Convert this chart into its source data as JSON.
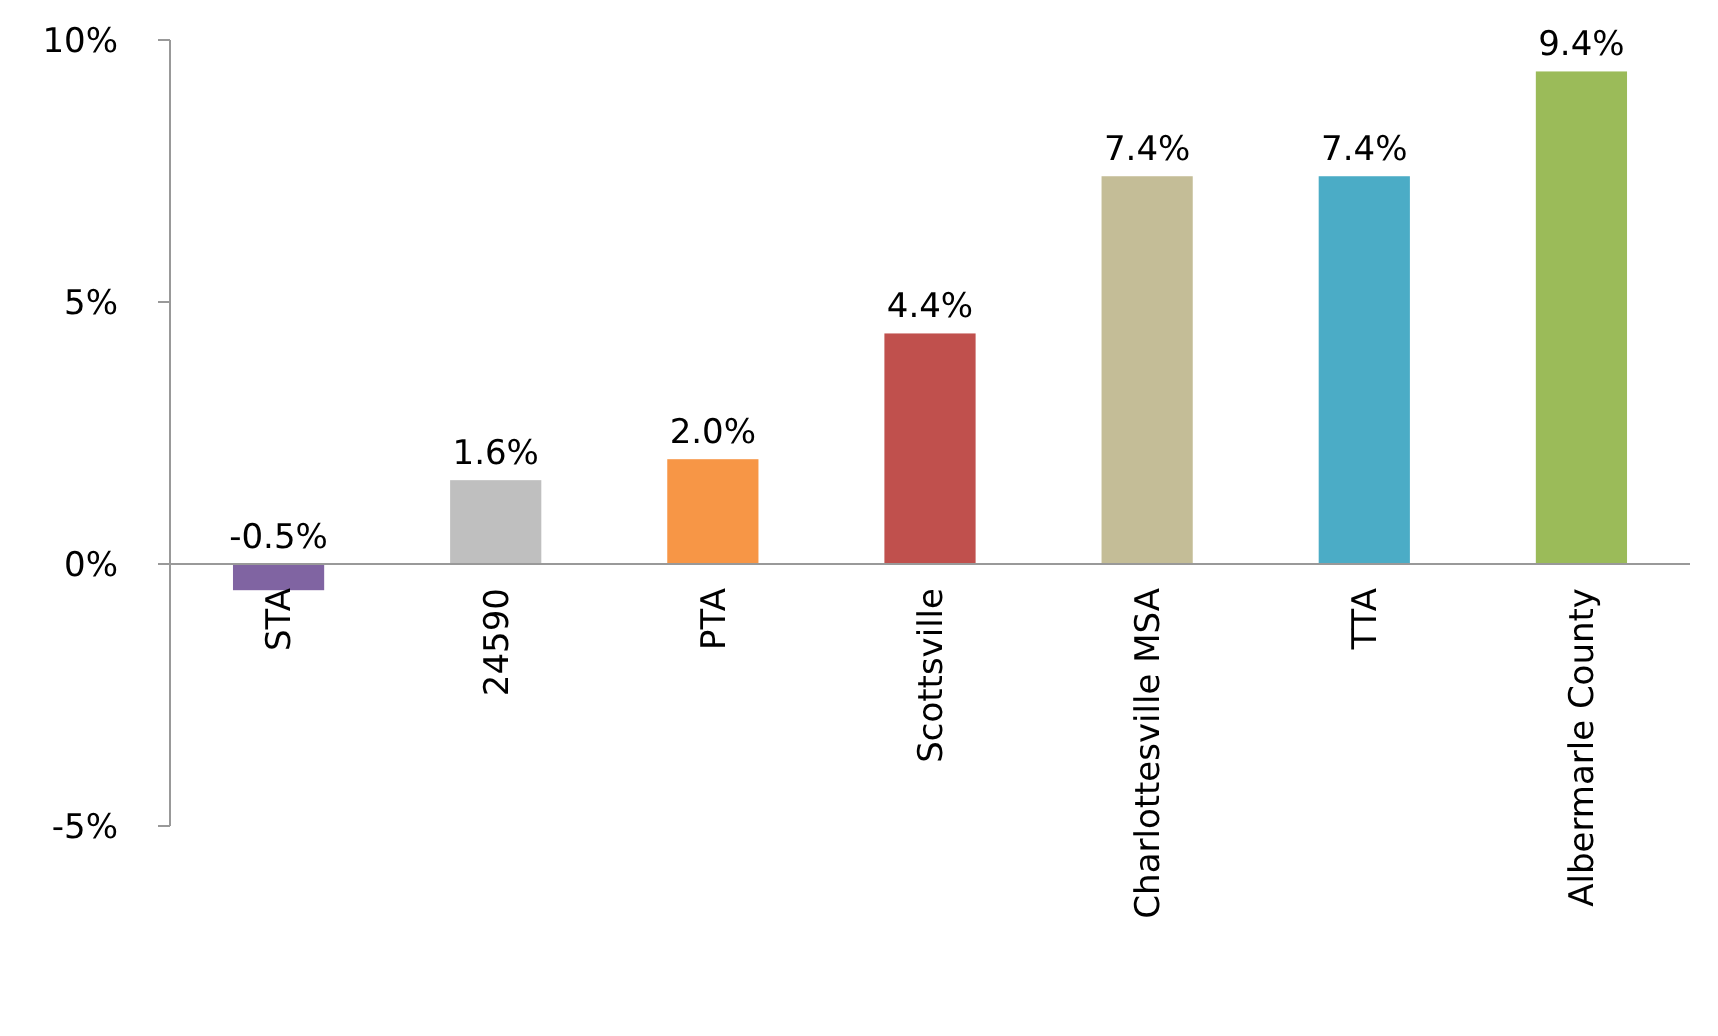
{
  "chart_data": {
    "type": "bar",
    "categories": [
      "STA",
      "24590",
      "PTA",
      "Scottsville",
      "Charlottesville MSA",
      "TTA",
      "Albermarle County"
    ],
    "values": [
      -0.5,
      1.6,
      2.0,
      4.4,
      7.4,
      7.4,
      9.4
    ],
    "colors": [
      "#8064a2",
      "#bfbfbf",
      "#f79646",
      "#c0504d",
      "#c4bd97",
      "#4bacc6",
      "#9bbb59"
    ],
    "value_labels": [
      "-0.5%",
      "1.6%",
      "2.0%",
      "4.4%",
      "7.4%",
      "7.4%",
      "9.4%"
    ],
    "ylim": [
      -5,
      10
    ],
    "yticks": [
      {
        "value": -5,
        "label": "-5%"
      },
      {
        "value": 0,
        "label": "0%"
      },
      {
        "value": 5,
        "label": "5%"
      },
      {
        "value": 10,
        "label": "10%"
      }
    ],
    "grid": false
  }
}
